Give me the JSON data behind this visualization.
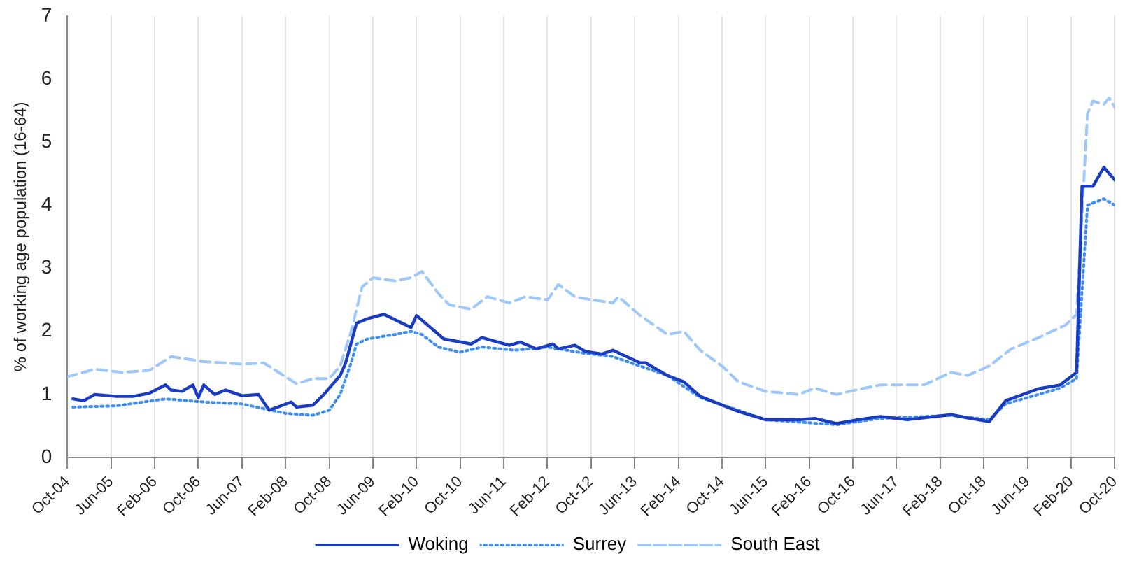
{
  "chart_data": {
    "type": "line",
    "ylabel": "% of working age population (16-64)",
    "ylim": [
      0,
      7
    ],
    "yticks": [
      0,
      1,
      2,
      3,
      4,
      5,
      6,
      7
    ],
    "xlim": [
      "2004-10",
      "2020-10"
    ],
    "xticks": [
      {
        "value": "2004-10",
        "label": "Oct-04"
      },
      {
        "value": "2005-06",
        "label": "Jun-05"
      },
      {
        "value": "2006-02",
        "label": "Feb-06"
      },
      {
        "value": "2006-10",
        "label": "Oct-06"
      },
      {
        "value": "2007-06",
        "label": "Jun-07"
      },
      {
        "value": "2008-02",
        "label": "Feb-08"
      },
      {
        "value": "2008-10",
        "label": "Oct-08"
      },
      {
        "value": "2009-06",
        "label": "Jun-09"
      },
      {
        "value": "2010-02",
        "label": "Feb-10"
      },
      {
        "value": "2010-10",
        "label": "Oct-10"
      },
      {
        "value": "2011-06",
        "label": "Jun-11"
      },
      {
        "value": "2012-02",
        "label": "Feb-12"
      },
      {
        "value": "2012-10",
        "label": "Oct-12"
      },
      {
        "value": "2013-06",
        "label": "Jun-13"
      },
      {
        "value": "2014-02",
        "label": "Feb-14"
      },
      {
        "value": "2014-10",
        "label": "Oct-14"
      },
      {
        "value": "2015-06",
        "label": "Jun-15"
      },
      {
        "value": "2016-02",
        "label": "Feb-16"
      },
      {
        "value": "2016-10",
        "label": "Oct-16"
      },
      {
        "value": "2017-06",
        "label": "Jun-17"
      },
      {
        "value": "2018-02",
        "label": "Feb-18"
      },
      {
        "value": "2018-10",
        "label": "Oct-18"
      },
      {
        "value": "2019-06",
        "label": "Jun-19"
      },
      {
        "value": "2020-02",
        "label": "Feb-20"
      },
      {
        "value": "2020-10",
        "label": "Oct-20"
      }
    ],
    "grid": "x",
    "legend": "bottom",
    "marker": "none",
    "series": [
      {
        "name": "Woking",
        "color": "#1a3cc0",
        "line_style": "solid",
        "x": [
          "2004-11",
          "2005-01",
          "2005-03",
          "2005-07",
          "2005-10",
          "2006-01",
          "2006-04",
          "2006-05",
          "2006-07",
          "2006-09",
          "2006-10",
          "2006-11",
          "2007-01",
          "2007-03",
          "2007-06",
          "2007-09",
          "2007-11",
          "2008-03",
          "2008-04",
          "2008-07",
          "2008-09",
          "2008-12",
          "2009-01",
          "2009-03",
          "2009-05",
          "2009-08",
          "2010-01",
          "2010-02",
          "2010-07",
          "2010-12",
          "2011-02",
          "2011-07",
          "2011-09",
          "2011-12",
          "2012-03",
          "2012-04",
          "2012-07",
          "2012-09",
          "2012-12",
          "2013-02",
          "2013-07",
          "2013-08",
          "2013-12",
          "2014-03",
          "2014-06",
          "2015-01",
          "2015-06",
          "2015-12",
          "2016-03",
          "2016-07",
          "2016-11",
          "2017-03",
          "2017-08",
          "2018-04",
          "2018-07",
          "2018-11",
          "2019-02",
          "2019-08",
          "2019-12",
          "2020-03",
          "2020-04",
          "2020-06",
          "2020-08",
          "2020-10"
        ],
        "values": [
          0.93,
          0.9,
          1.0,
          0.97,
          0.97,
          1.02,
          1.15,
          1.07,
          1.05,
          1.15,
          0.95,
          1.15,
          1.0,
          1.07,
          0.98,
          1.0,
          0.75,
          0.88,
          0.8,
          0.83,
          1.0,
          1.3,
          1.5,
          2.13,
          2.2,
          2.27,
          2.06,
          2.25,
          1.88,
          1.8,
          1.9,
          1.78,
          1.83,
          1.72,
          1.8,
          1.72,
          1.78,
          1.68,
          1.64,
          1.7,
          1.5,
          1.5,
          1.3,
          1.2,
          0.97,
          0.73,
          0.6,
          0.6,
          0.62,
          0.54,
          0.6,
          0.65,
          0.6,
          0.68,
          0.63,
          0.57,
          0.9,
          1.09,
          1.15,
          1.35,
          4.3,
          4.3,
          4.6,
          4.4
        ]
      },
      {
        "name": "Surrey",
        "color": "#3d8ef0",
        "line_style": "dotted",
        "x": [
          "2004-11",
          "2005-07",
          "2006-04",
          "2006-11",
          "2007-06",
          "2008-02",
          "2008-07",
          "2008-10",
          "2008-12",
          "2009-02",
          "2009-03",
          "2009-05",
          "2009-10",
          "2010-01",
          "2010-03",
          "2010-06",
          "2010-10",
          "2011-02",
          "2011-08",
          "2012-02",
          "2012-09",
          "2013-02",
          "2013-07",
          "2013-12",
          "2014-06",
          "2014-12",
          "2015-06",
          "2016-07",
          "2017-03",
          "2018-04",
          "2018-11",
          "2019-02",
          "2019-12",
          "2020-03",
          "2020-05",
          "2020-08",
          "2020-10"
        ],
        "values": [
          0.8,
          0.82,
          0.93,
          0.88,
          0.85,
          0.7,
          0.67,
          0.75,
          1.0,
          1.5,
          1.8,
          1.88,
          1.95,
          2.0,
          1.95,
          1.75,
          1.67,
          1.75,
          1.7,
          1.75,
          1.65,
          1.6,
          1.45,
          1.3,
          0.95,
          0.78,
          0.6,
          0.52,
          0.62,
          0.67,
          0.6,
          0.85,
          1.1,
          1.25,
          4.0,
          4.1,
          4.0
        ]
      },
      {
        "name": "South East",
        "color": "#9dc8f8",
        "line_style": "dashed",
        "x": [
          "2004-10",
          "2005-03",
          "2005-08",
          "2006-01",
          "2006-05",
          "2006-11",
          "2007-06",
          "2007-10",
          "2008-04",
          "2008-07",
          "2008-10",
          "2008-12",
          "2009-02",
          "2009-04",
          "2009-06",
          "2009-10",
          "2010-01",
          "2010-03",
          "2010-06",
          "2010-08",
          "2010-12",
          "2011-03",
          "2011-07",
          "2011-10",
          "2012-02",
          "2012-04",
          "2012-07",
          "2012-10",
          "2013-02",
          "2013-03",
          "2013-07",
          "2013-12",
          "2014-03",
          "2014-06",
          "2014-10",
          "2015-01",
          "2015-06",
          "2015-12",
          "2016-03",
          "2016-07",
          "2016-11",
          "2017-03",
          "2017-11",
          "2018-04",
          "2018-07",
          "2018-11",
          "2019-03",
          "2019-08",
          "2020-01",
          "2020-03",
          "2020-05",
          "2020-06",
          "2020-08",
          "2020-09",
          "2020-10"
        ],
        "values": [
          1.28,
          1.4,
          1.35,
          1.38,
          1.6,
          1.52,
          1.48,
          1.5,
          1.17,
          1.25,
          1.25,
          1.45,
          2.0,
          2.7,
          2.85,
          2.8,
          2.85,
          2.95,
          2.6,
          2.42,
          2.35,
          2.55,
          2.45,
          2.55,
          2.5,
          2.74,
          2.55,
          2.5,
          2.45,
          2.55,
          2.25,
          1.95,
          2.0,
          1.7,
          1.45,
          1.2,
          1.05,
          1.0,
          1.1,
          1.0,
          1.08,
          1.15,
          1.15,
          1.35,
          1.3,
          1.45,
          1.72,
          1.9,
          2.1,
          2.27,
          5.45,
          5.65,
          5.6,
          5.7,
          5.55
        ]
      }
    ]
  }
}
